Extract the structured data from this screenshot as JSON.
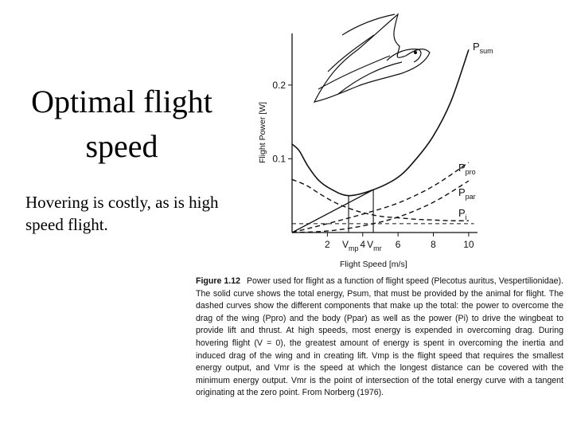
{
  "slide": {
    "title_line1": "Optimal flight",
    "title_line2": "speed",
    "body": "Hovering is costly, as is high speed flight."
  },
  "chart_data": {
    "type": "line",
    "ylabel": "Flight Power [W]",
    "xlabel": "Flight Speed [m/s]",
    "xlim": [
      0,
      10.5
    ],
    "ylim": [
      0,
      0.27
    ],
    "x_ticks": [
      2,
      4,
      6,
      8,
      10
    ],
    "y_ticks": [
      0.1,
      0.2
    ],
    "x_tick_labels": [
      "2",
      "4",
      "6",
      "8",
      "10"
    ],
    "y_tick_labels": [
      "0.1",
      "0.2"
    ],
    "special_ticks": [
      {
        "label": "V",
        "sub": "mp",
        "x": 3.2
      },
      {
        "label": "V",
        "sub": "mr",
        "x": 4.6
      }
    ],
    "series": [
      {
        "name": "P",
        "sub": "sum",
        "style": "solid",
        "x": [
          0,
          0.4,
          0.9,
          1.5,
          2.2,
          3.2,
          4.6,
          6,
          7,
          8,
          9,
          10
        ],
        "y": [
          0.12,
          0.111,
          0.09,
          0.071,
          0.059,
          0.05,
          0.058,
          0.075,
          0.099,
          0.131,
          0.178,
          0.248
        ]
      },
      {
        "name": "P",
        "sub": "pro",
        "style": "dashed",
        "x": [
          0,
          2,
          4,
          6,
          8,
          10
        ],
        "y": [
          0.0,
          0.012,
          0.025,
          0.04,
          0.063,
          0.095
        ]
      },
      {
        "name": "P",
        "sub": "par",
        "style": "dashed",
        "x": [
          0,
          2,
          4,
          6,
          8,
          10
        ],
        "y": [
          0.0,
          0.002,
          0.009,
          0.021,
          0.041,
          0.07
        ]
      },
      {
        "name": "P",
        "sub": "i",
        "style": "dashed",
        "x": [
          0,
          0.8,
          1.6,
          2.4,
          3.2,
          4,
          5,
          6,
          7,
          8,
          9,
          10
        ],
        "y": [
          0.072,
          0.064,
          0.052,
          0.041,
          0.033,
          0.027,
          0.022,
          0.02,
          0.018,
          0.017,
          0.016,
          0.016
        ]
      }
    ],
    "reference_lines": [
      {
        "type": "tangent",
        "from": [
          0,
          0
        ],
        "to": [
          4.6,
          0.058
        ]
      },
      {
        "type": "vertical",
        "x": 3.2
      },
      {
        "type": "vertical",
        "x": 4.6
      },
      {
        "type": "horizontal-dashed",
        "y": 0.012
      }
    ]
  },
  "caption": {
    "figure_label": "Figure 1.12",
    "text": "Power used for flight as a function of flight speed (Plecotus auritus, Vespertilionidae). The solid curve shows the total energy, Psum, that must be provided by the animal for flight. The dashed curves show the different components that make up the total: the power to overcome the drag of the wing (Ppro) and the body (Ppar) as well as the power (Pi) to drive the wingbeat to provide lift and thrust. At high speeds, most energy is expended in overcoming drag. During hovering flight (V = 0), the greatest amount of energy is spent in overcoming the inertia and induced drag of the wing and in creating lift. Vmp is the flight speed that requires the smallest energy output, and Vmr is the speed at which the longest distance can be covered with the minimum energy output. Vmr is the point of intersection of the total energy curve with a tangent originating at the zero point. From Norberg (1976)."
  }
}
